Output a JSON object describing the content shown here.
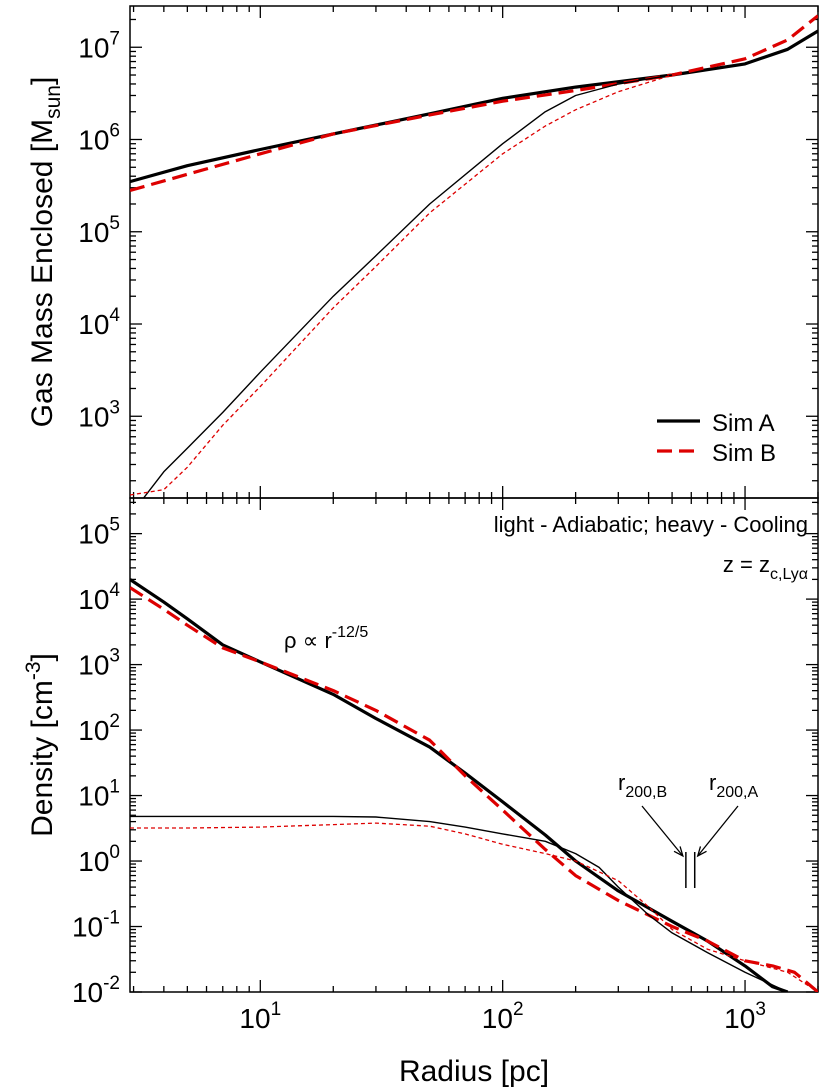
{
  "chart_data": [
    {
      "type": "line",
      "title": "",
      "xlabel": "",
      "ylabel": "Gas Mass Enclosed [M",
      "ylabel_sub": "sun",
      "ylabel_end": "]",
      "xscale": "log",
      "yscale": "log",
      "xlim": [
        2.9,
        2000
      ],
      "ylim": [
        130,
        28000000
      ],
      "y_ticks": [
        {
          "value": 1000,
          "base": "10",
          "exp": "3"
        },
        {
          "value": 10000,
          "base": "10",
          "exp": "4"
        },
        {
          "value": 100000,
          "base": "10",
          "exp": "5"
        },
        {
          "value": 1000000,
          "base": "10",
          "exp": "6"
        },
        {
          "value": 10000000,
          "base": "10",
          "exp": "7"
        }
      ],
      "legend": {
        "placement": "bottom-right",
        "entries": [
          {
            "label": "Sim A",
            "color": "#000000",
            "style": "solid"
          },
          {
            "label": "Sim B",
            "color": "#dd0000",
            "style": "dashed"
          }
        ]
      },
      "series": [
        {
          "sim": "A",
          "model": "Cooling",
          "color": "#000000",
          "dash": "none",
          "width": 3.2,
          "x": [
            2.9,
            5,
            10,
            20,
            50,
            100,
            200,
            500,
            1000,
            1500,
            2000
          ],
          "y": [
            350000,
            520000,
            780000,
            1150000,
            1900000,
            2800000,
            3700000,
            5000000,
            6600000,
            9500000,
            15000000
          ]
        },
        {
          "sim": "B",
          "model": "Cooling",
          "color": "#dd0000",
          "dash": "15,7",
          "width": 3.2,
          "x": [
            2.9,
            5,
            10,
            20,
            50,
            100,
            200,
            500,
            1000,
            1500,
            2000
          ],
          "y": [
            280000,
            420000,
            700000,
            1150000,
            1850000,
            2600000,
            3400000,
            5000000,
            7500000,
            12000000,
            22000000
          ]
        },
        {
          "sim": "A",
          "model": "Adiabatic",
          "color": "#000000",
          "dash": "none",
          "width": 1.4,
          "x": [
            3.3,
            4,
            5,
            7,
            10,
            20,
            30,
            50,
            100,
            150,
            200,
            300,
            500
          ],
          "y": [
            130,
            250,
            450,
            1100,
            3000,
            20000,
            55000,
            200000,
            900000,
            2000000,
            3000000,
            4000000,
            5000000
          ]
        },
        {
          "sim": "B",
          "model": "Adiabatic",
          "color": "#dd0000",
          "dash": "4,3",
          "width": 1.3,
          "x": [
            2.9,
            4,
            5,
            7,
            10,
            20,
            30,
            50,
            100,
            150,
            200,
            300,
            500
          ],
          "y": [
            140,
            160,
            280,
            800,
            2100,
            15000,
            42000,
            160000,
            700000,
            1400000,
            2100000,
            3300000,
            5000000
          ]
        }
      ]
    },
    {
      "type": "line",
      "title": "",
      "xlabel": "Radius [pc]",
      "ylabel": "Density [cm",
      "ylabel_sup": "-3",
      "ylabel_end": "]",
      "xscale": "log",
      "yscale": "log",
      "xlim": [
        2.9,
        2000
      ],
      "ylim": [
        0.01,
        350000
      ],
      "x_ticks": [
        {
          "value": 10,
          "base": "10",
          "exp": "1"
        },
        {
          "value": 100,
          "base": "10",
          "exp": "2"
        },
        {
          "value": 1000,
          "base": "10",
          "exp": "3"
        }
      ],
      "y_ticks": [
        {
          "value": 0.01,
          "base": "10",
          "exp": "-2"
        },
        {
          "value": 0.1,
          "base": "10",
          "exp": "-1"
        },
        {
          "value": 1,
          "base": "10",
          "exp": "0"
        },
        {
          "value": 10,
          "base": "10",
          "exp": "1"
        },
        {
          "value": 100,
          "base": "10",
          "exp": "2"
        },
        {
          "value": 1000,
          "base": "10",
          "exp": "3"
        },
        {
          "value": 10000,
          "base": "10",
          "exp": "4"
        },
        {
          "value": 100000,
          "base": "10",
          "exp": "5"
        }
      ],
      "annotations": {
        "note": "light - Adiabatic; heavy - Cooling",
        "redshift_main": "z = z",
        "redshift_sub": "c,Lyα",
        "slope_main": "ρ ∝ r",
        "slope_sup": "-12/5",
        "r200b_main": "r",
        "r200b_sub": "200,B",
        "r200a_main": "r",
        "r200a_sub": "200,A"
      },
      "r200": {
        "B": 570,
        "A": 620
      },
      "series": [
        {
          "sim": "A",
          "model": "Cooling",
          "color": "#000000",
          "dash": "none",
          "width": 3.2,
          "x": [
            2.9,
            4,
            5,
            7,
            10,
            20,
            30,
            50,
            70,
            100,
            150,
            200,
            300,
            500,
            700,
            1000,
            1300,
            1500
          ],
          "y": [
            20000,
            9000,
            5000,
            2000,
            1100,
            350,
            150,
            55,
            22,
            8,
            2.5,
            1.0,
            0.35,
            0.12,
            0.06,
            0.025,
            0.012,
            0.01
          ]
        },
        {
          "sim": "B",
          "model": "Cooling",
          "color": "#dd0000",
          "dash": "15,7",
          "width": 3.2,
          "x": [
            2.9,
            4,
            5,
            7,
            10,
            20,
            30,
            50,
            70,
            100,
            150,
            200,
            300,
            500,
            700,
            1000,
            1300,
            1600,
            2000
          ],
          "y": [
            15000,
            7000,
            4000,
            1800,
            1100,
            400,
            200,
            70,
            20,
            6,
            1.5,
            0.6,
            0.25,
            0.1,
            0.06,
            0.03,
            0.025,
            0.02,
            0.01
          ]
        },
        {
          "sim": "A",
          "model": "Adiabatic",
          "color": "#000000",
          "dash": "none",
          "width": 1.4,
          "x": [
            2.9,
            5,
            10,
            20,
            30,
            50,
            70,
            100,
            150,
            200,
            250,
            300,
            400,
            500,
            700,
            1000,
            1500
          ],
          "y": [
            4.8,
            4.8,
            4.8,
            4.8,
            4.7,
            4.0,
            3.3,
            2.6,
            2.0,
            1.3,
            0.8,
            0.4,
            0.15,
            0.08,
            0.04,
            0.02,
            0.01
          ]
        },
        {
          "sim": "B",
          "model": "Adiabatic",
          "color": "#dd0000",
          "dash": "4,3",
          "width": 1.3,
          "x": [
            2.9,
            5,
            10,
            20,
            30,
            50,
            70,
            100,
            150,
            200,
            300,
            400,
            500,
            700,
            1000,
            1500,
            2000
          ],
          "y": [
            3.2,
            3.2,
            3.3,
            3.6,
            3.8,
            3.4,
            2.6,
            1.8,
            1.3,
            1.0,
            0.5,
            0.2,
            0.09,
            0.045,
            0.03,
            0.02,
            0.01
          ]
        }
      ]
    }
  ]
}
